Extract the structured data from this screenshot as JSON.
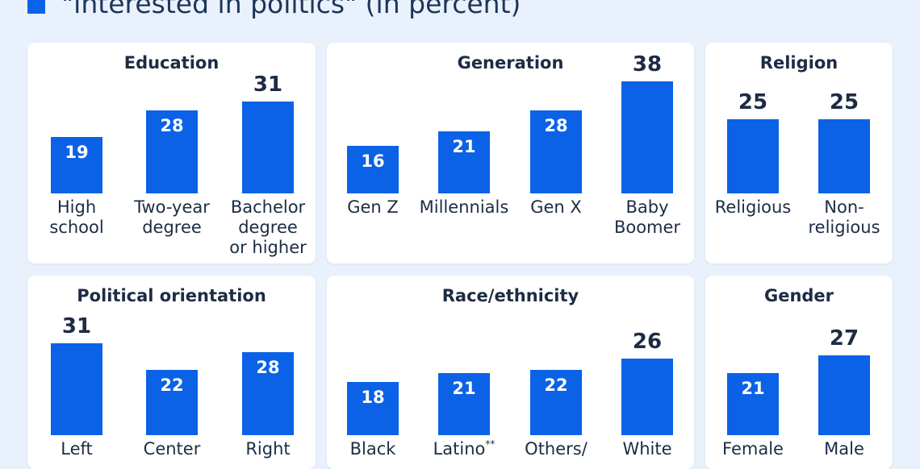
{
  "header": {
    "legend_label": "\"interested in politics\" (in percent)",
    "bar_color": "#0b62e6"
  },
  "chart_data": [
    {
      "type": "bar",
      "title": "Education",
      "categories": [
        "High school",
        "Two-year degree",
        "Bachelor degree or higher"
      ],
      "display_labels": [
        "High\nschool",
        "Two-year\ndegree",
        "Bachelor\ndegree\nor higher"
      ],
      "values": [
        19,
        28,
        31
      ]
    },
    {
      "type": "bar",
      "title": "Generation",
      "categories": [
        "Gen Z",
        "Millennials",
        "Gen X",
        "Baby Boomer"
      ],
      "display_labels": [
        "Gen Z",
        "Millennials",
        "Gen X",
        "Baby\nBoomer"
      ],
      "values": [
        16,
        21,
        28,
        38
      ]
    },
    {
      "type": "bar",
      "title": "Religion",
      "categories": [
        "Religious",
        "Non-religious"
      ],
      "display_labels": [
        "Religious",
        "Non-\nreligious"
      ],
      "values": [
        25,
        25
      ]
    },
    {
      "type": "bar",
      "title": "Political orientation",
      "categories": [
        "Left",
        "Center",
        "Right"
      ],
      "display_labels": [
        "Left",
        "Center",
        "Right"
      ],
      "values": [
        31,
        22,
        28
      ]
    },
    {
      "type": "bar",
      "title": "Race/ethnicity",
      "categories": [
        "Black",
        "Latino**",
        "Others/",
        "White"
      ],
      "display_labels": [
        "Black",
        "Latino",
        "Others/",
        "White"
      ],
      "label_superscripts": [
        "",
        "**",
        "",
        ""
      ],
      "values": [
        18,
        21,
        22,
        26
      ]
    },
    {
      "type": "bar",
      "title": "Gender",
      "categories": [
        "Female",
        "Male"
      ],
      "display_labels": [
        "Female",
        "Male"
      ],
      "values": [
        21,
        27
      ]
    }
  ]
}
